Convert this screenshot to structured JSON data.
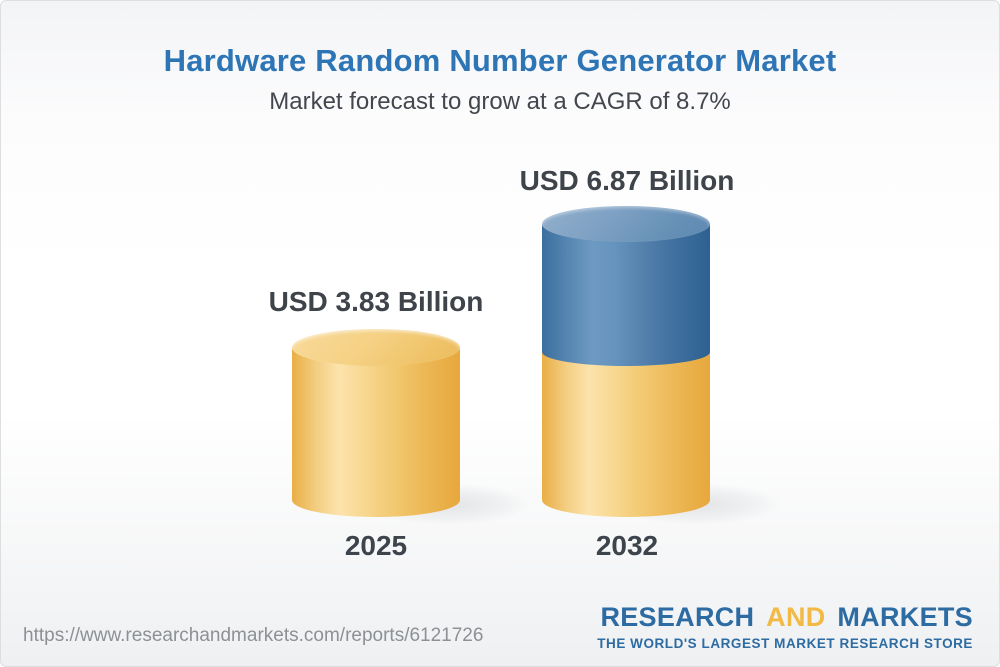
{
  "header": {
    "title": "Hardware Random Number Generator Market",
    "subtitle": "Market forecast to grow at a CAGR of 8.7%"
  },
  "chart_data": {
    "type": "bar",
    "subtype": "3d-cylinder-infographic",
    "title": "Hardware Random Number Generator Market",
    "subtitle": "Market forecast to grow at a CAGR of 8.7%",
    "cagr_percent": 8.7,
    "unit": "USD Billion",
    "categories": [
      "2025",
      "2032"
    ],
    "values": [
      3.83,
      6.87
    ],
    "value_labels": [
      "USD 3.83 Billion",
      "USD 6.87 Billion"
    ],
    "series_note": "2032 cylinder shows 3.83 base segment in gold plus growth segment to 6.87 in blue",
    "legend": "none",
    "axes": "none",
    "colors": {
      "base_segment": "#f0c46c",
      "growth_segment": "#5d88b3",
      "title_text": "#2e75b6",
      "label_text": "#3f444b"
    }
  },
  "chart": {
    "bars": [
      {
        "category": "2025",
        "value_label": "USD 3.83 Billion"
      },
      {
        "category": "2032",
        "value_label": "USD 6.87 Billion"
      }
    ]
  },
  "footer": {
    "url": "https://www.researchandmarkets.com/reports/6121726",
    "logo": {
      "research": "RESEARCH",
      "and": "AND",
      "markets": "MARKETS",
      "tagline": "THE WORLD'S LARGEST MARKET RESEARCH STORE"
    }
  }
}
